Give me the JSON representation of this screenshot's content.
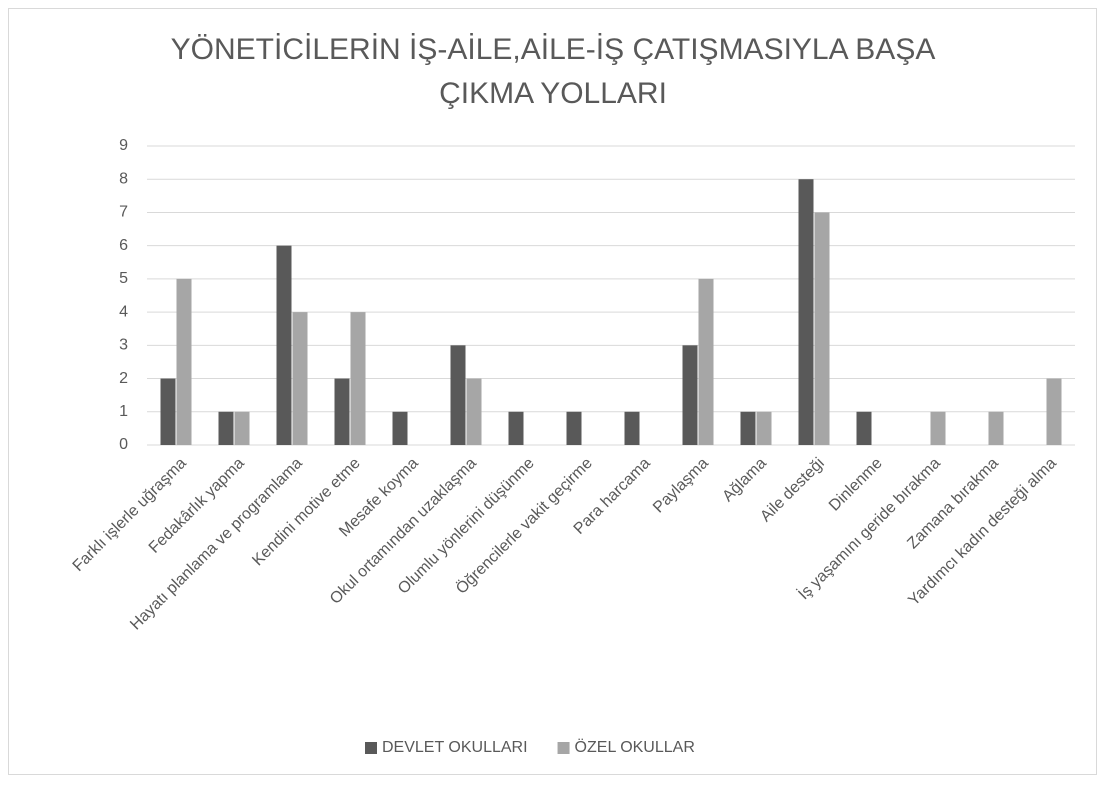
{
  "chart_data": {
    "type": "bar",
    "title": "YÖNETİCİLERİN İŞ-AİLE,AİLE-İŞ ÇATIŞMASIYLA BAŞA ÇIKMA YOLLARI",
    "categories": [
      "Farklı işlerle uğraşma",
      "Fedakârlık yapma",
      "Hayatı planlama ve programlama",
      "Kendini motive etme",
      "Mesafe koyma",
      "Okul ortamından uzaklaşma",
      "Olumlu yönlerini düşünme",
      "Öğrencilerle vakit geçirme",
      "Para harcama",
      "Paylaşma",
      "Ağlama",
      "Aile desteği",
      "Dinlenme",
      "İş yaşamını geride bırakma",
      "Zamana bırakma",
      "Yardımcı kadın desteği alma"
    ],
    "series": [
      {
        "name": "DEVLET OKULLARI",
        "color": "#595959",
        "values": [
          2,
          1,
          6,
          2,
          1,
          3,
          1,
          1,
          1,
          3,
          1,
          8,
          1,
          0,
          0,
          0
        ]
      },
      {
        "name": "ÖZEL OKULLAR",
        "color": "#a6a6a6",
        "values": [
          5,
          1,
          4,
          4,
          0,
          2,
          0,
          0,
          0,
          5,
          1,
          7,
          0,
          1,
          1,
          2
        ]
      }
    ],
    "ylim": [
      0,
      9
    ],
    "yticks": [
      0,
      1,
      2,
      3,
      4,
      5,
      6,
      7,
      8,
      9
    ],
    "grid": true,
    "legend": "bottom"
  }
}
